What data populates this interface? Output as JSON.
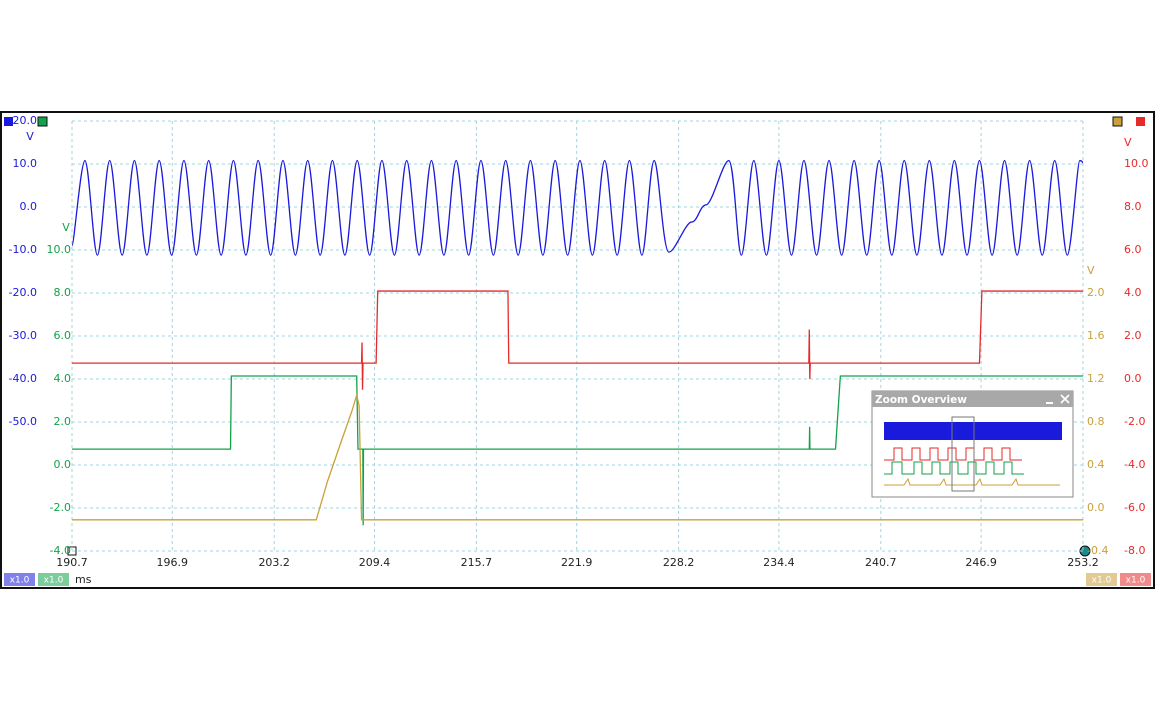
{
  "chart_data": {
    "type": "line",
    "xlim": [
      190.7,
      253.2
    ],
    "xticks": [
      190.7,
      196.9,
      203.2,
      209.4,
      215.7,
      221.9,
      228.2,
      234.4,
      240.7,
      246.9,
      253.2
    ],
    "x_unit": "ms",
    "grid": true,
    "ylim": [
      -80,
      20
    ],
    "yticks": [
      {
        "value": 20,
        "label": "20.0"
      },
      {
        "value": 10,
        "label": "10.0"
      },
      {
        "value": 0,
        "label": "0.0"
      },
      {
        "value": -10,
        "label": "-10.0"
      },
      {
        "value": -20,
        "label": "-20.0"
      },
      {
        "value": -30,
        "label": "-30.0"
      },
      {
        "value": -40,
        "label": "-40.0"
      },
      {
        "value": -50,
        "label": "-50.0"
      }
    ],
    "y_unit": "V",
    "y2lim": [
      -4,
      16
    ],
    "y2ticks": [
      {
        "value": 10,
        "label": "10.0"
      },
      {
        "value": 8,
        "label": "8.0"
      },
      {
        "value": 6,
        "label": "6.0"
      },
      {
        "value": 4,
        "label": "4.0"
      },
      {
        "value": 2,
        "label": "2.0"
      },
      {
        "value": 0,
        "label": "0.0"
      },
      {
        "value": -2,
        "label": "-2.0"
      },
      {
        "value": -4,
        "label": "-4.0"
      }
    ],
    "y2_unit": "V",
    "y3lim": [
      -8,
      12
    ],
    "y3ticks": [
      {
        "value": 10,
        "label": "10.0"
      },
      {
        "value": 8,
        "label": "8.0"
      },
      {
        "value": 6,
        "label": "6.0"
      },
      {
        "value": 4,
        "label": "4.0"
      },
      {
        "value": 2,
        "label": "2.0"
      },
      {
        "value": 0,
        "label": "0.0"
      },
      {
        "value": -2,
        "label": "-2.0"
      },
      {
        "value": -4,
        "label": "-4.0"
      },
      {
        "value": -6,
        "label": "-6.0"
      },
      {
        "value": -8,
        "label": "-8.0"
      }
    ],
    "y3_unit": "V",
    "y4lim": [
      -0.4,
      3.6
    ],
    "y4ticks": [
      {
        "value": 2,
        "label": "2.0"
      },
      {
        "value": 1.6,
        "label": "1.6"
      },
      {
        "value": 1.2,
        "label": "1.2"
      },
      {
        "value": 0.8,
        "label": "0.8"
      },
      {
        "value": 0.4,
        "label": "0.4"
      },
      {
        "value": 0,
        "label": "0.0"
      },
      {
        "value": -0.4,
        "label": "-0.4"
      }
    ],
    "y4_unit": "V",
    "channel_scales": [
      "x1.0",
      "x1.0",
      "x1.0",
      "x1.0"
    ],
    "series": [
      {
        "color": "#1a1adc",
        "axis": "y",
        "x": [
          190.7,
          191.5,
          192.27,
          193.03,
          193.8,
          194.56,
          195.33,
          196.09,
          196.86,
          197.62,
          198.39,
          199.15,
          199.92,
          200.68,
          201.45,
          202.21,
          202.98,
          203.74,
          204.51,
          205.27,
          206.04,
          206.8,
          207.57,
          208.33,
          209.1,
          209.86,
          210.63,
          211.39,
          212.16,
          212.92,
          213.69,
          214.45,
          215.22,
          215.98,
          216.75,
          217.51,
          218.28,
          219.04,
          219.81,
          220.57,
          221.34,
          222.1,
          222.87,
          223.63,
          224.4,
          225.16,
          225.93,
          226.69,
          227.6,
          229.0,
          229.9,
          231.3,
          232.08,
          232.85,
          233.63,
          234.4,
          235.18,
          235.95,
          236.73,
          237.5,
          238.28,
          239.05,
          239.83,
          240.6,
          241.38,
          242.15,
          242.93,
          243.7,
          244.48,
          245.25,
          246.03,
          246.8,
          247.58,
          248.35,
          249.13,
          249.9,
          250.68,
          251.45,
          252.23,
          253.0,
          253.2
        ],
        "values": [
          -9,
          10.8,
          -11.2,
          10.8,
          -11.2,
          10.8,
          -11.2,
          10.8,
          -11.2,
          10.8,
          -11.2,
          10.8,
          -11.2,
          10.8,
          -11.2,
          10.8,
          -11.2,
          10.8,
          -11.2,
          10.8,
          -11.2,
          10.8,
          -11.2,
          10.8,
          -11.2,
          10.8,
          -11.2,
          10.8,
          -11.2,
          10.8,
          -11.2,
          10.8,
          -11.2,
          10.8,
          -11.2,
          10.8,
          -11.2,
          10.8,
          -11.2,
          10.8,
          -11.2,
          10.8,
          -11.2,
          10.8,
          -11.2,
          10.8,
          -11.2,
          10.8,
          -10.5,
          -3.5,
          0.5,
          10.8,
          -11.2,
          10.8,
          -11.2,
          10.8,
          -11.2,
          10.8,
          -11.2,
          10.8,
          -11.2,
          10.8,
          -11.2,
          10.8,
          -11.2,
          10.8,
          -11.2,
          10.8,
          -11.2,
          10.8,
          -11.2,
          10.8,
          -11.2,
          10.8,
          -11.2,
          10.8,
          -11.2,
          10.8,
          -11.2,
          10.8,
          10.3
        ]
      },
      {
        "color": "#12a24a",
        "axis": "y2",
        "x": [
          190.7,
          200.5,
          200.55,
          208.3,
          208.38,
          208.68,
          208.7,
          208.72,
          236.28,
          236.3,
          236.32,
          237.9,
          238.2,
          253.2
        ],
        "values": [
          0.74,
          0.74,
          4.14,
          4.14,
          0.74,
          0.74,
          -2.8,
          0.74,
          0.74,
          1.77,
          0.74,
          0.74,
          4.14,
          4.14
        ]
      },
      {
        "color": "#e62a2a",
        "axis": "y3",
        "x": [
          190.7,
          208.6,
          208.63,
          208.66,
          208.69,
          209.5,
          209.6,
          217.65,
          217.7,
          236.25,
          236.28,
          236.31,
          236.34,
          246.8,
          246.95,
          253.2
        ],
        "values": [
          0.74,
          0.74,
          1.7,
          -0.5,
          0.74,
          0.74,
          4.09,
          4.09,
          0.74,
          0.74,
          2.3,
          0,
          0.74,
          0.74,
          4.09,
          4.09
        ]
      },
      {
        "color": "#c9a03a",
        "axis": "y4",
        "x": [
          190.7,
          205.8,
          206.5,
          207.3,
          208.0,
          208.3,
          208.45,
          208.6,
          253.2
        ],
        "values": [
          -0.11,
          -0.11,
          0.25,
          0.6,
          0.9,
          1.05,
          0.95,
          -0.11,
          -0.11
        ]
      }
    ]
  },
  "zoom_overview": {
    "title": "Zoom Overview"
  }
}
